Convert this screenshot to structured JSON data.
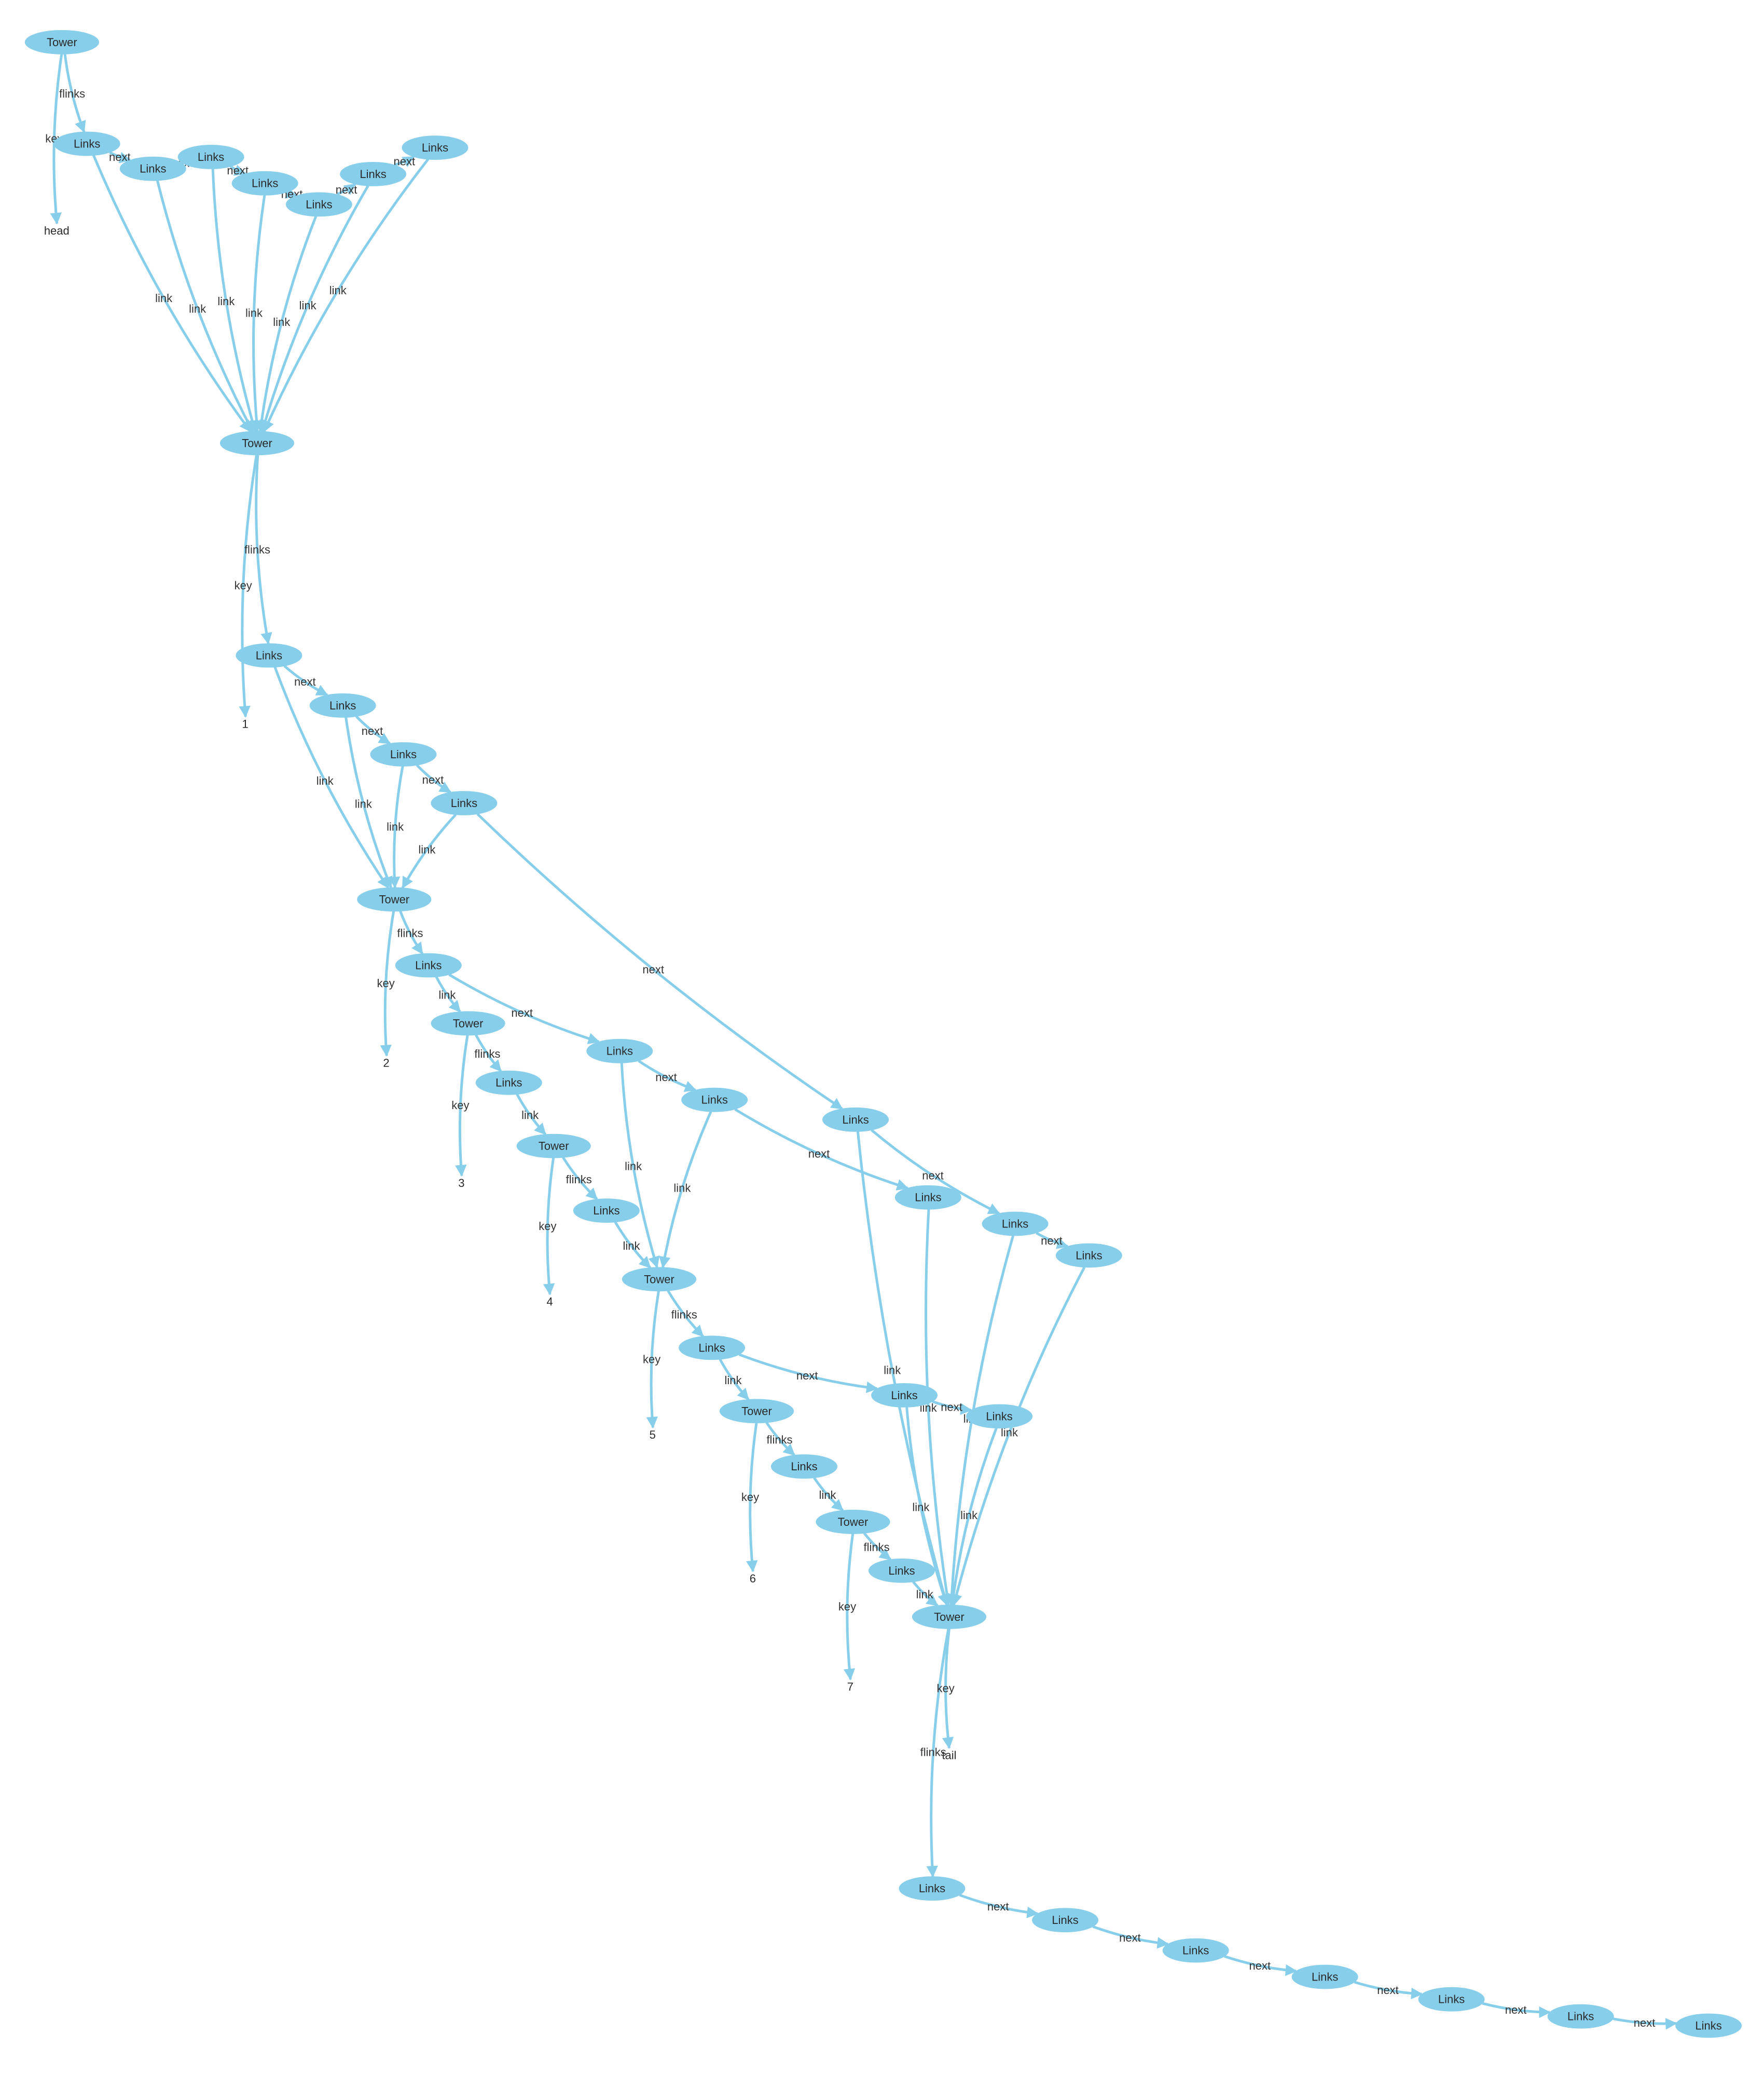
{
  "colors": {
    "node": "#87ceeb",
    "edge": "#87ceeb",
    "text": "#2a2a2a",
    "background": "#ffffff"
  },
  "nodes": [
    {
      "id": "t0",
      "label": "Tower"
    },
    {
      "id": "hd",
      "label": "head",
      "kind": "leaf"
    },
    {
      "id": "a1",
      "label": "Links"
    },
    {
      "id": "a2",
      "label": "Links"
    },
    {
      "id": "a3",
      "label": "Links"
    },
    {
      "id": "a4",
      "label": "Links"
    },
    {
      "id": "a5",
      "label": "Links"
    },
    {
      "id": "a6",
      "label": "Links"
    },
    {
      "id": "a7",
      "label": "Links"
    },
    {
      "id": "t1",
      "label": "Tower"
    },
    {
      "id": "k1",
      "label": "1",
      "kind": "leaf"
    },
    {
      "id": "b1",
      "label": "Links"
    },
    {
      "id": "b2",
      "label": "Links"
    },
    {
      "id": "b3",
      "label": "Links"
    },
    {
      "id": "b4",
      "label": "Links"
    },
    {
      "id": "t2",
      "label": "Tower"
    },
    {
      "id": "k2",
      "label": "2",
      "kind": "leaf"
    },
    {
      "id": "c1",
      "label": "Links"
    },
    {
      "id": "t3",
      "label": "Tower"
    },
    {
      "id": "k3",
      "label": "3",
      "kind": "leaf"
    },
    {
      "id": "d1",
      "label": "Links"
    },
    {
      "id": "t4",
      "label": "Tower"
    },
    {
      "id": "k4",
      "label": "4",
      "kind": "leaf"
    },
    {
      "id": "e1",
      "label": "Links"
    },
    {
      "id": "c2",
      "label": "Links"
    },
    {
      "id": "c3",
      "label": "Links"
    },
    {
      "id": "t5",
      "label": "Tower"
    },
    {
      "id": "k5",
      "label": "5",
      "kind": "leaf"
    },
    {
      "id": "f1",
      "label": "Links"
    },
    {
      "id": "t6",
      "label": "Tower"
    },
    {
      "id": "k6",
      "label": "6",
      "kind": "leaf"
    },
    {
      "id": "g1",
      "label": "Links"
    },
    {
      "id": "t7",
      "label": "Tower"
    },
    {
      "id": "k7",
      "label": "7",
      "kind": "leaf"
    },
    {
      "id": "h1",
      "label": "Links"
    },
    {
      "id": "b5",
      "label": "Links"
    },
    {
      "id": "c4",
      "label": "Links"
    },
    {
      "id": "b6",
      "label": "Links"
    },
    {
      "id": "b7",
      "label": "Links"
    },
    {
      "id": "f2",
      "label": "Links"
    },
    {
      "id": "f3",
      "label": "Links"
    },
    {
      "id": "t8",
      "label": "Tower"
    },
    {
      "id": "tl",
      "label": "tail",
      "kind": "leaf"
    },
    {
      "id": "z1",
      "label": "Links"
    },
    {
      "id": "z2",
      "label": "Links"
    },
    {
      "id": "z3",
      "label": "Links"
    },
    {
      "id": "z4",
      "label": "Links"
    },
    {
      "id": "z5",
      "label": "Links"
    },
    {
      "id": "z6",
      "label": "Links"
    },
    {
      "id": "z7",
      "label": "Links"
    }
  ],
  "edges": [
    {
      "from": "t0",
      "to": "a1",
      "label": "flinks"
    },
    {
      "from": "t0",
      "to": "hd",
      "label": "key"
    },
    {
      "from": "a1",
      "to": "a2",
      "label": "next"
    },
    {
      "from": "a2",
      "to": "a3",
      "label": "next"
    },
    {
      "from": "a3",
      "to": "a4",
      "label": "next"
    },
    {
      "from": "a4",
      "to": "a5",
      "label": "next"
    },
    {
      "from": "a5",
      "to": "a6",
      "label": "next"
    },
    {
      "from": "a6",
      "to": "a7",
      "label": "next"
    },
    {
      "from": "a1",
      "to": "t1",
      "label": "link"
    },
    {
      "from": "a2",
      "to": "t1",
      "label": "link"
    },
    {
      "from": "a3",
      "to": "t1",
      "label": "link"
    },
    {
      "from": "a4",
      "to": "t1",
      "label": "link"
    },
    {
      "from": "a5",
      "to": "t1",
      "label": "link"
    },
    {
      "from": "a6",
      "to": "t1",
      "label": "link"
    },
    {
      "from": "a7",
      "to": "t1",
      "label": "link"
    },
    {
      "from": "t1",
      "to": "b1",
      "label": "flinks"
    },
    {
      "from": "t1",
      "to": "k1",
      "label": "key"
    },
    {
      "from": "b1",
      "to": "b2",
      "label": "next"
    },
    {
      "from": "b2",
      "to": "b3",
      "label": "next"
    },
    {
      "from": "b3",
      "to": "b4",
      "label": "next"
    },
    {
      "from": "b1",
      "to": "t2",
      "label": "link"
    },
    {
      "from": "b2",
      "to": "t2",
      "label": "link"
    },
    {
      "from": "b3",
      "to": "t2",
      "label": "link"
    },
    {
      "from": "b4",
      "to": "t2",
      "label": "link"
    },
    {
      "from": "b4",
      "to": "b5",
      "label": "next"
    },
    {
      "from": "t2",
      "to": "c1",
      "label": "flinks"
    },
    {
      "from": "t2",
      "to": "k2",
      "label": "key"
    },
    {
      "from": "c1",
      "to": "t3",
      "label": "link"
    },
    {
      "from": "c1",
      "to": "c2",
      "label": "next"
    },
    {
      "from": "t3",
      "to": "d1",
      "label": "flinks"
    },
    {
      "from": "t3",
      "to": "k3",
      "label": "key"
    },
    {
      "from": "d1",
      "to": "t4",
      "label": "link"
    },
    {
      "from": "t4",
      "to": "e1",
      "label": "flinks"
    },
    {
      "from": "t4",
      "to": "k4",
      "label": "key"
    },
    {
      "from": "e1",
      "to": "t5",
      "label": "link"
    },
    {
      "from": "c2",
      "to": "c3",
      "label": "next"
    },
    {
      "from": "c2",
      "to": "t5",
      "label": "link"
    },
    {
      "from": "c3",
      "to": "t5",
      "label": "link"
    },
    {
      "from": "c3",
      "to": "c4",
      "label": "next"
    },
    {
      "from": "b5",
      "to": "b6",
      "label": "next"
    },
    {
      "from": "b6",
      "to": "b7",
      "label": "next"
    },
    {
      "from": "t5",
      "to": "f1",
      "label": "flinks"
    },
    {
      "from": "t5",
      "to": "k5",
      "label": "key"
    },
    {
      "from": "f1",
      "to": "f2",
      "label": "next"
    },
    {
      "from": "f1",
      "to": "t6",
      "label": "link"
    },
    {
      "from": "f2",
      "to": "f3",
      "label": "next"
    },
    {
      "from": "t6",
      "to": "g1",
      "label": "flinks"
    },
    {
      "from": "t6",
      "to": "k6",
      "label": "key"
    },
    {
      "from": "g1",
      "to": "t7",
      "label": "link"
    },
    {
      "from": "t7",
      "to": "h1",
      "label": "flinks"
    },
    {
      "from": "t7",
      "to": "k7",
      "label": "key"
    },
    {
      "from": "h1",
      "to": "t8",
      "label": "link"
    },
    {
      "from": "b5",
      "to": "t8",
      "label": "link"
    },
    {
      "from": "c4",
      "to": "t8",
      "label": "link"
    },
    {
      "from": "b6",
      "to": "t8",
      "label": "link"
    },
    {
      "from": "b7",
      "to": "t8",
      "label": "link"
    },
    {
      "from": "f2",
      "to": "t8",
      "label": "link"
    },
    {
      "from": "f3",
      "to": "t8",
      "label": "link"
    },
    {
      "from": "t8",
      "to": "tl",
      "label": "key"
    },
    {
      "from": "t8",
      "to": "z1",
      "label": "flinks"
    },
    {
      "from": "z1",
      "to": "z2",
      "label": "next"
    },
    {
      "from": "z2",
      "to": "z3",
      "label": "next"
    },
    {
      "from": "z3",
      "to": "z4",
      "label": "next"
    },
    {
      "from": "z4",
      "to": "z5",
      "label": "next"
    },
    {
      "from": "z5",
      "to": "z6",
      "label": "next"
    },
    {
      "from": "z6",
      "to": "z7",
      "label": "next"
    }
  ]
}
